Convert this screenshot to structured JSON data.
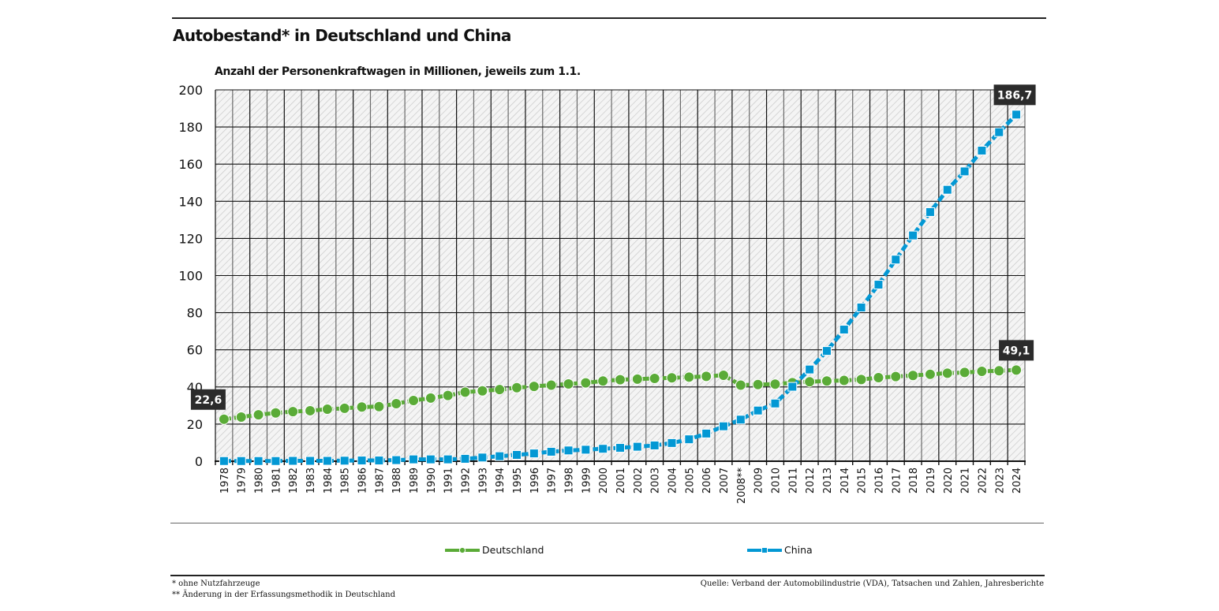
{
  "header": {
    "title": "Autobestand* in Deutschland und China",
    "subtitle": "Anzahl der Personenkraftwagen in Millionen, jeweils zum 1.1."
  },
  "footer": {
    "note_1": "* ohne Nutzfahrzeuge",
    "note_2": "** Änderung in der Erfassungsmethodik in Deutschland",
    "source": "Quelle: Verband der Automobilindustrie (VDA), Tatsachen und Zahlen, Jahresberichte"
  },
  "legend": {
    "items": [
      {
        "label": "Deutschland",
        "color": "#5aab37",
        "marker": "circle"
      },
      {
        "label": "China",
        "color": "#0398d4",
        "marker": "square"
      }
    ]
  },
  "chart_data": {
    "type": "line",
    "title": "Autobestand* in Deutschland und China",
    "subtitle": "Anzahl der Personenkraftwagen in Millionen, jeweils zum 1.1.",
    "xlabel": "",
    "ylabel": "",
    "ylim": [
      0,
      200
    ],
    "yticks": [
      0,
      20,
      40,
      60,
      80,
      100,
      120,
      140,
      160,
      180,
      200
    ],
    "grid": true,
    "legend_position": "bottom",
    "categories": [
      "1978",
      "1979",
      "1980",
      "1981",
      "1982",
      "1983",
      "1984",
      "1985",
      "1986",
      "1987",
      "1988",
      "1989",
      "1990",
      "1991",
      "1992",
      "1993",
      "1994",
      "1995",
      "1996",
      "1997",
      "1998",
      "1999",
      "2000",
      "2001",
      "2002",
      "2003",
      "2004",
      "2005",
      "2006",
      "2007",
      "2008**",
      "2009",
      "2010",
      "2011",
      "2012",
      "2013",
      "2014",
      "2015",
      "2016",
      "2017",
      "2018",
      "2019",
      "2020",
      "2021",
      "2022",
      "2023",
      "2024"
    ],
    "series": [
      {
        "name": "Deutschland",
        "color": "#5aab37",
        "marker": "circle",
        "values": [
          22.6,
          23.8,
          25.0,
          26.0,
          26.7,
          27.2,
          28.0,
          28.5,
          29.2,
          29.4,
          31.0,
          32.7,
          34.0,
          35.4,
          37.2,
          37.9,
          38.6,
          39.6,
          40.3,
          41.0,
          41.6,
          42.2,
          43.2,
          43.9,
          44.2,
          44.6,
          44.9,
          45.3,
          45.7,
          46.3,
          41.0,
          41.3,
          41.5,
          42.3,
          42.8,
          43.2,
          43.5,
          44.0,
          45.0,
          45.6,
          46.2,
          46.8,
          47.4,
          47.8,
          48.4,
          48.7,
          49.1
        ]
      },
      {
        "name": "China",
        "color": "#0398d4",
        "marker": "square",
        "values": [
          0.1,
          0.1,
          0.1,
          0.1,
          0.2,
          0.2,
          0.2,
          0.3,
          0.4,
          0.4,
          0.6,
          1.0,
          1.0,
          1.0,
          1.3,
          2.0,
          2.7,
          3.4,
          4.2,
          5.1,
          5.8,
          6.2,
          6.7,
          7.2,
          7.8,
          8.5,
          9.8,
          11.8,
          14.9,
          18.8,
          22.4,
          27.3,
          31.1,
          40.1,
          49.4,
          59.4,
          70.9,
          82.8,
          95.1,
          108.6,
          121.6,
          134.2,
          146.2,
          156.1,
          167.3,
          177.2,
          186.7
        ]
      }
    ],
    "annotations": [
      {
        "series": "Deutschland",
        "category": "1978",
        "text": "22,6"
      },
      {
        "series": "Deutschland",
        "category": "2024",
        "text": "49,1"
      },
      {
        "series": "China",
        "category": "2024",
        "text": "186,7"
      }
    ]
  }
}
